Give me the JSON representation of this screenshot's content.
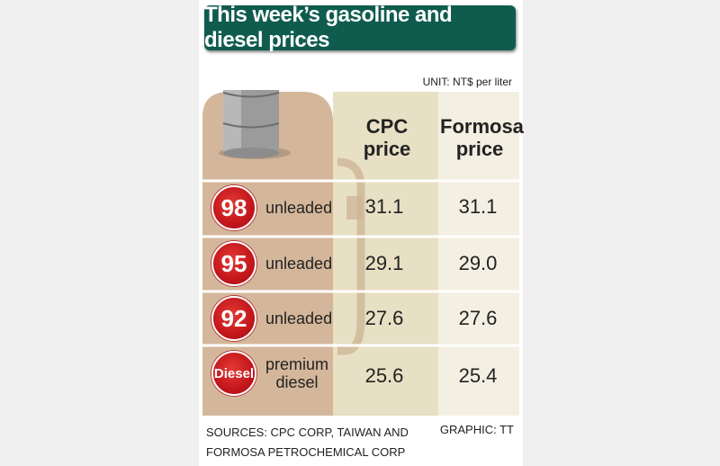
{
  "title": "This week’s gasoline and diesel prices",
  "unit": "UNIT: NT$ per liter",
  "columns": [
    "CPC\nprice",
    "Formosa\nprice"
  ],
  "sources": [
    "SOURCES: CPC CORP, TAIWAN AND",
    "FORMOSA PETROCHEMICAL CORP"
  ],
  "credit": "GRAPHIC: TT",
  "icons": [
    "oil-barrel-icon",
    "fuel-nozzle-icon"
  ],
  "colors": {
    "title_bg": "#0f5c4f",
    "badge_red": "#c3161b",
    "tan": "#d4b79b",
    "beige": "#e8e0c4",
    "cream": "#f3efe2"
  },
  "rows": [
    {
      "badge": "98",
      "label": "unleaded",
      "cpc": "31.1",
      "formosa": "31.1"
    },
    {
      "badge": "95",
      "label": "unleaded",
      "cpc": "29.1",
      "formosa": "29.0"
    },
    {
      "badge": "92",
      "label": "unleaded",
      "cpc": "27.6",
      "formosa": "27.6"
    },
    {
      "badge": "Diesel",
      "label": "premium\ndiesel",
      "cpc": "25.6",
      "formosa": "25.4"
    }
  ],
  "chart_data": {
    "type": "table",
    "title": "This week’s gasoline and diesel prices",
    "unit": "NT$ per liter",
    "columns": [
      "CPC price",
      "Formosa price"
    ],
    "rows": [
      "98 unleaded",
      "95 unleaded",
      "92 unleaded",
      "Diesel premium diesel"
    ],
    "series": [
      {
        "name": "CPC price",
        "values": [
          31.1,
          29.1,
          27.6,
          25.6
        ]
      },
      {
        "name": "Formosa price",
        "values": [
          31.1,
          29.0,
          27.6,
          25.4
        ]
      }
    ]
  }
}
